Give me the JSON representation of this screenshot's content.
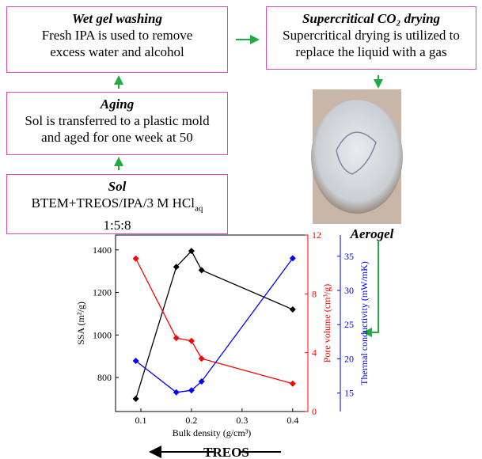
{
  "steps": [
    {
      "title": "Wet gel washing",
      "lines": [
        "Fresh IPA is used to remove",
        "excess water and alcohol"
      ]
    },
    {
      "title": "Supercritical CO₂ drying",
      "lines": [
        "Supercritical drying is utilized to",
        "replace the liquid with a gas"
      ]
    },
    {
      "title": "Aging",
      "lines": [
        "Sol is transferred to a plastic mold",
        "and aged for one week at 50"
      ]
    },
    {
      "title": "Sol",
      "formula": "BTEM+TREOS/IPA/3 M HCl",
      "formula_sub": "aq",
      "lines": [
        "1:5:8"
      ]
    }
  ],
  "image_label": "Aerogel",
  "arrow_label": "TREOS",
  "chart_data": {
    "type": "line",
    "x_label": "Bulk density (g/cm³)",
    "y_label": "SSA (m²/g)",
    "y2_label": "Pore volume (cm³/g)",
    "y3_label": "Thermal conductivity (mW/mK)",
    "x": [
      0.09,
      0.17,
      0.2,
      0.22,
      0.4
    ],
    "series": [
      {
        "color": "#000000",
        "values": [
          700,
          1320,
          1395,
          1305,
          1120
        ]
      },
      {
        "color": "#ff0000",
        "axis": "y2",
        "values": [
          10.4,
          5.0,
          4.8,
          3.6,
          1.9
        ]
      },
      {
        "color": "#0000ff",
        "axis": "y3",
        "values": [
          19.7,
          15.1,
          15.4,
          16.7,
          34.7
        ]
      }
    ],
    "xlim": [
      0.05,
      0.43
    ],
    "xticks": [
      0.1,
      0.2,
      0.3,
      0.4
    ],
    "ylim": [
      640,
      1470
    ],
    "yticks": [
      800,
      1000,
      1200,
      1400
    ],
    "y2lim": [
      0,
      12
    ],
    "y2ticks": [
      0,
      4,
      8,
      12
    ],
    "y3lim": [
      12.3,
      38.1
    ],
    "y3ticks": [
      15,
      20,
      25,
      30,
      35
    ]
  }
}
